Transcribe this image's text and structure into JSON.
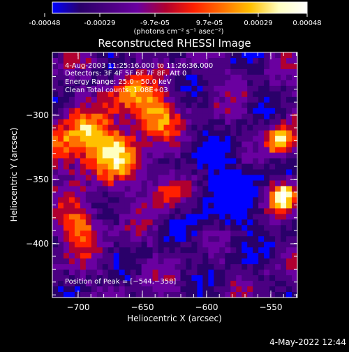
{
  "colorbar": {
    "tick_labels": [
      "-0.00048",
      "-0.00029",
      "-9.7e-05",
      "9.7e-05",
      "0.00029",
      "0.00048"
    ],
    "unit_label": "(photons cm⁻² s⁻¹ asec⁻²)",
    "range": [
      -0.00048,
      0.00048
    ],
    "stops": [
      "#0000ff",
      "#2a006a",
      "#4b0082",
      "#6a00a0",
      "#b00030",
      "#ff2000",
      "#ff7000",
      "#ffc000",
      "#ffffc0",
      "#ffffff"
    ]
  },
  "image": {
    "title": "Reconstructed RHESSI Image",
    "x_label": "Heliocentric X (arcsec)",
    "y_label": "Heliocentric Y (arcsec)",
    "x_ticks": [
      "−700",
      "−650",
      "−600",
      "−550"
    ],
    "y_ticks": [
      "−300",
      "−350",
      "−400"
    ],
    "x_range": [
      -720,
      -530
    ],
    "y_range": [
      -445,
      -255
    ],
    "info_lines": [
      "4-Aug-2003 11:25:16.000 to 11:26:36.000",
      "Detectors: 3F 4F 5F 6F 7F 8F, Att 0",
      "Energy Range: 25.0 - 50.0 keV",
      "Clean    Total counts: 1.08E+03"
    ],
    "peak_label": "Position of Peak = [−544,−358]"
  },
  "footer": {
    "timestamp": "4-May-2022 12:44"
  }
}
